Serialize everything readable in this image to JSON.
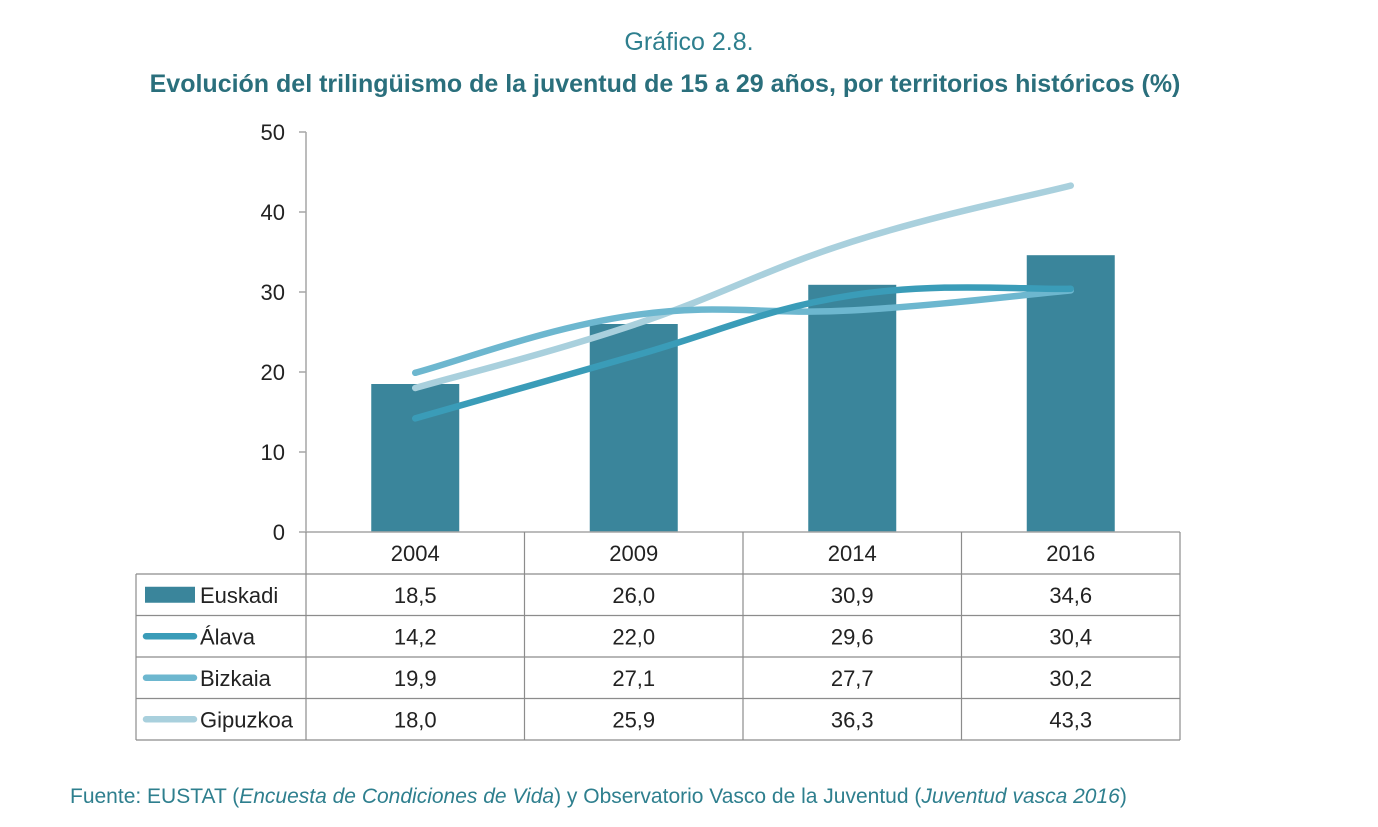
{
  "header": {
    "supertitle": "Gráfico 2.8.",
    "title": "Evolución del trilingüismo de la juventud de 15 a 29 años, por territorios históricos (%)"
  },
  "chart_data": {
    "type": "bar",
    "categories": [
      "2004",
      "2009",
      "2014",
      "2016"
    ],
    "ylim": [
      0,
      50
    ],
    "yticks": [
      "0",
      "10",
      "20",
      "30",
      "40",
      "50"
    ],
    "series": [
      {
        "name": "Euskadi",
        "kind": "bar",
        "color": "#3a859b",
        "values": [
          18.5,
          26.0,
          30.9,
          34.6
        ],
        "labels": [
          "18,5",
          "26,0",
          "30,9",
          "34,6"
        ]
      },
      {
        "name": "Álava",
        "kind": "line",
        "color": "#3a9cb8",
        "values": [
          14.2,
          22.0,
          29.6,
          30.4
        ],
        "labels": [
          "14,2",
          "22,0",
          "29,6",
          "30,4"
        ]
      },
      {
        "name": "Bizkaia",
        "kind": "line",
        "color": "#6db7cf",
        "values": [
          19.9,
          27.1,
          27.7,
          30.2
        ],
        "labels": [
          "19,9",
          "27,1",
          "27,7",
          "30,2"
        ]
      },
      {
        "name": "Gipuzkoa",
        "kind": "line",
        "color": "#a9d0dd",
        "values": [
          18.0,
          25.9,
          36.3,
          43.3
        ],
        "labels": [
          "18,0",
          "25,9",
          "36,3",
          "43,3"
        ]
      }
    ],
    "legend": "data-table-below",
    "grid": false
  },
  "source": {
    "prefix": "Fuente: EUSTAT (",
    "italic1": "Encuesta de Condiciones de Vida",
    "middle": ") y Observatorio Vasco de la Juventud (",
    "italic2": "Juventud vasca 2016",
    "suffix": ")"
  }
}
